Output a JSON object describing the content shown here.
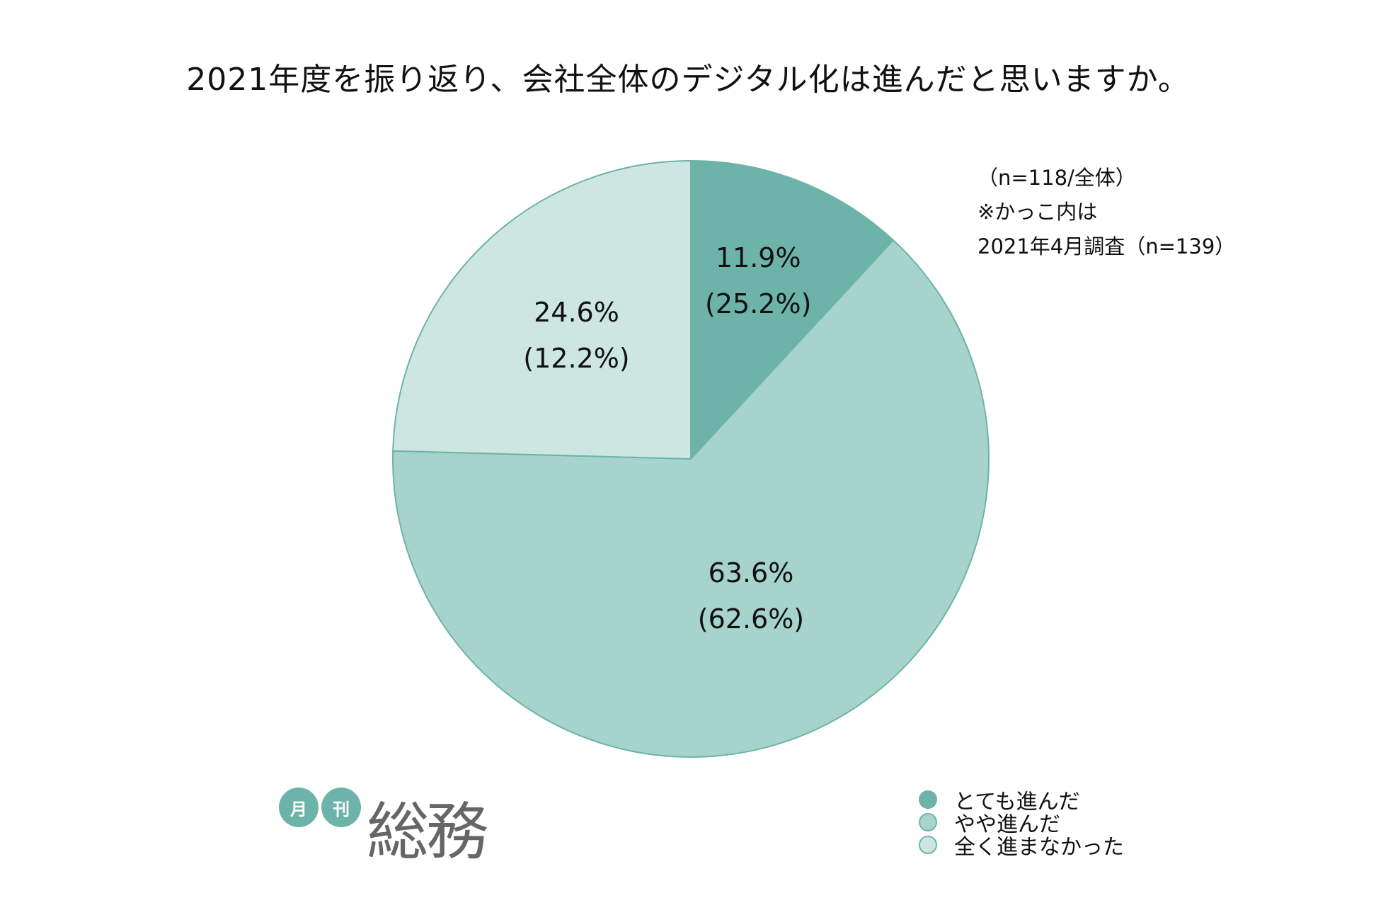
{
  "chart_data": {
    "type": "pie",
    "title": "2021年度を振り返り、会社全体のデジタル化は進んだと思いますか。",
    "categories": [
      "とても進んだ",
      "やや進んだ",
      "全く進まなかった"
    ],
    "values": [
      11.9,
      63.6,
      24.6
    ],
    "previous_values": [
      25.2,
      62.6,
      12.2
    ],
    "labels": [
      {
        "main": "11.9%",
        "sub": "(25.2%)"
      },
      {
        "main": "63.6%",
        "sub": "(62.6%)"
      },
      {
        "main": "24.6%",
        "sub": "(12.2%)"
      }
    ],
    "colors": [
      "#6db3a9",
      "#a6d3cc",
      "#cde6e2"
    ],
    "stroke_color": "#6db3a9",
    "start": "top, clockwise",
    "legend_position": "bottom-right"
  },
  "notes": [
    "（n=118/全体）",
    "※かっこ内は",
    "2021年4月調査（n=139）"
  ],
  "logo": {
    "small1": "月",
    "small2": "刊",
    "main": "総務"
  }
}
